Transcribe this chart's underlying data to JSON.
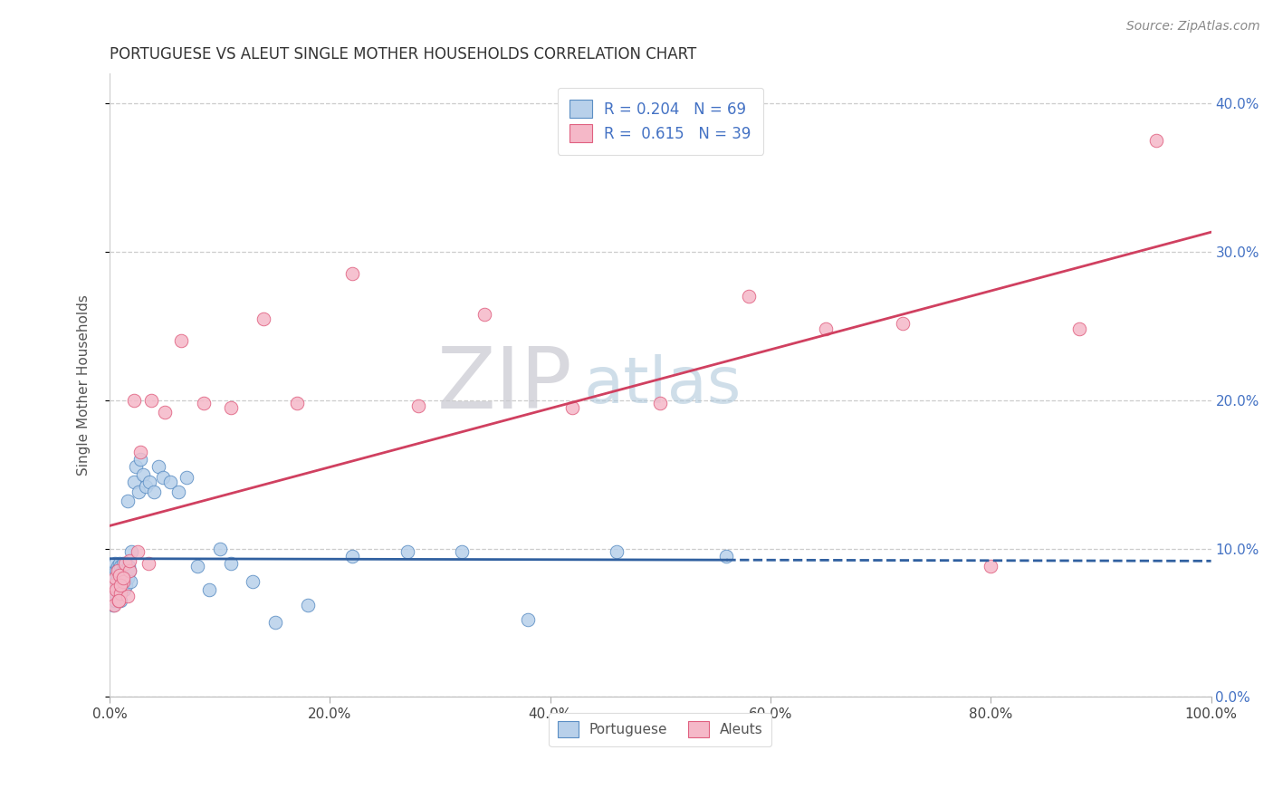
{
  "title": "PORTUGUESE VS ALEUT SINGLE MOTHER HOUSEHOLDS CORRELATION CHART",
  "source": "Source: ZipAtlas.com",
  "ylabel": "Single Mother Households",
  "legend_portuguese": "Portuguese",
  "legend_aleuts": "Aleuts",
  "r_portuguese": "0.204",
  "n_portuguese": "69",
  "r_aleuts": "0.615",
  "n_aleuts": "39",
  "color_portuguese_fill": "#b8d0ea",
  "color_portuguese_edge": "#5b8ec4",
  "color_aleuts_fill": "#f5b8c8",
  "color_aleuts_edge": "#e06080",
  "line_portuguese_color": "#3060a0",
  "line_aleuts_color": "#d04060",
  "xlim": [
    0.0,
    1.0
  ],
  "ylim": [
    0.0,
    0.42
  ],
  "xtick_vals": [
    0.0,
    0.2,
    0.4,
    0.6,
    0.8,
    1.0
  ],
  "ytick_vals": [
    0.0,
    0.1,
    0.2,
    0.3,
    0.4
  ],
  "portuguese_x": [
    0.001,
    0.002,
    0.002,
    0.003,
    0.003,
    0.003,
    0.004,
    0.004,
    0.004,
    0.005,
    0.005,
    0.005,
    0.005,
    0.006,
    0.006,
    0.006,
    0.007,
    0.007,
    0.007,
    0.008,
    0.008,
    0.008,
    0.009,
    0.009,
    0.009,
    0.01,
    0.01,
    0.01,
    0.011,
    0.011,
    0.012,
    0.012,
    0.013,
    0.013,
    0.014,
    0.015,
    0.015,
    0.016,
    0.016,
    0.017,
    0.018,
    0.019,
    0.02,
    0.022,
    0.024,
    0.026,
    0.028,
    0.03,
    0.033,
    0.036,
    0.04,
    0.044,
    0.048,
    0.055,
    0.062,
    0.07,
    0.08,
    0.09,
    0.1,
    0.11,
    0.13,
    0.15,
    0.18,
    0.22,
    0.27,
    0.32,
    0.38,
    0.46,
    0.56
  ],
  "portuguese_y": [
    0.068,
    0.072,
    0.065,
    0.08,
    0.075,
    0.062,
    0.085,
    0.078,
    0.068,
    0.082,
    0.09,
    0.074,
    0.065,
    0.085,
    0.078,
    0.07,
    0.088,
    0.08,
    0.072,
    0.086,
    0.078,
    0.07,
    0.09,
    0.082,
    0.074,
    0.088,
    0.078,
    0.065,
    0.085,
    0.075,
    0.09,
    0.078,
    0.085,
    0.072,
    0.08,
    0.09,
    0.075,
    0.132,
    0.08,
    0.088,
    0.085,
    0.078,
    0.098,
    0.145,
    0.155,
    0.138,
    0.16,
    0.15,
    0.142,
    0.145,
    0.138,
    0.155,
    0.148,
    0.145,
    0.138,
    0.148,
    0.088,
    0.072,
    0.1,
    0.09,
    0.078,
    0.05,
    0.062,
    0.095,
    0.098,
    0.098,
    0.052,
    0.098,
    0.095
  ],
  "aleuts_x": [
    0.002,
    0.003,
    0.004,
    0.005,
    0.006,
    0.007,
    0.008,
    0.009,
    0.01,
    0.012,
    0.014,
    0.016,
    0.018,
    0.022,
    0.028,
    0.038,
    0.05,
    0.065,
    0.085,
    0.11,
    0.14,
    0.17,
    0.22,
    0.28,
    0.34,
    0.42,
    0.5,
    0.58,
    0.65,
    0.72,
    0.8,
    0.88,
    0.95,
    0.008,
    0.01,
    0.012,
    0.018,
    0.025,
    0.035
  ],
  "aleuts_y": [
    0.068,
    0.075,
    0.062,
    0.08,
    0.072,
    0.085,
    0.065,
    0.082,
    0.07,
    0.078,
    0.09,
    0.068,
    0.085,
    0.2,
    0.165,
    0.2,
    0.192,
    0.24,
    0.198,
    0.195,
    0.255,
    0.198,
    0.285,
    0.196,
    0.258,
    0.195,
    0.198,
    0.27,
    0.248,
    0.252,
    0.088,
    0.248,
    0.375,
    0.065,
    0.075,
    0.08,
    0.092,
    0.098,
    0.09
  ]
}
